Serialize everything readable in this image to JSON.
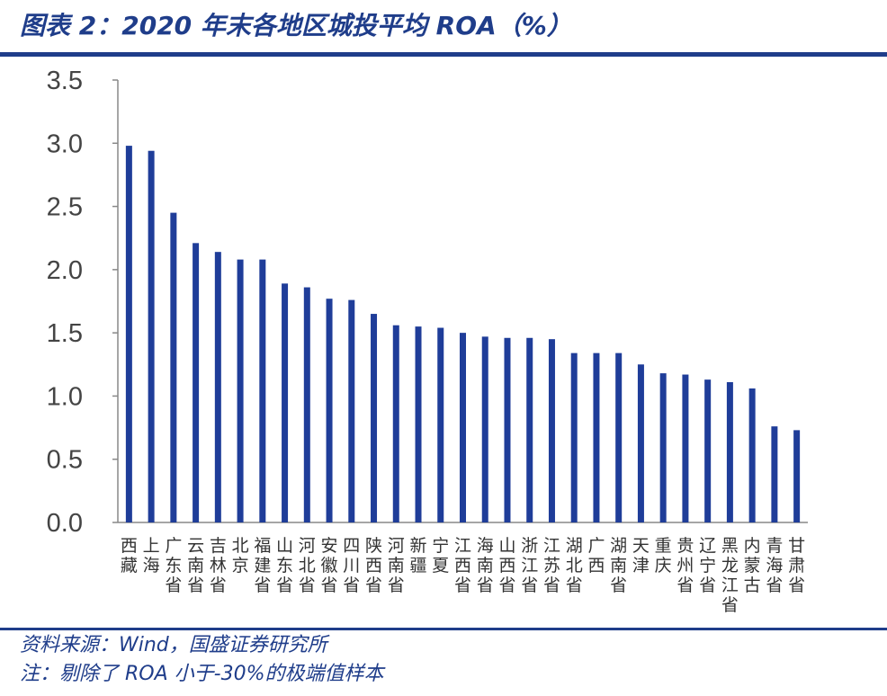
{
  "header": {
    "title": "图表 2：2020 年末各地区城投平均 ROA（%）"
  },
  "footer": {
    "source": "资料来源：Wind，国盛证券研究所",
    "note": "注：剔除了 ROA 小于-30%的极端值样本"
  },
  "colors": {
    "bar": "#1f3d99",
    "accent": "#1f3d8a"
  },
  "chart_data": {
    "type": "bar",
    "title": "2020 年末各地区城投平均 ROA（%）",
    "categories": [
      "西藏",
      "上海",
      "广东省",
      "云南省",
      "吉林省",
      "北京",
      "福建省",
      "山东省",
      "河北省",
      "安徽省",
      "四川省",
      "陕西省",
      "河南省",
      "新疆",
      "宁夏",
      "江西省",
      "海南省",
      "山西省",
      "浙江省",
      "江苏省",
      "湖北省",
      "广西",
      "湖南省",
      "天津",
      "重庆",
      "贵州省",
      "辽宁省",
      "黑龙江省",
      "内蒙古",
      "青海省",
      "甘肃省"
    ],
    "values": [
      2.98,
      2.94,
      2.45,
      2.21,
      2.14,
      2.08,
      2.08,
      1.89,
      1.86,
      1.77,
      1.76,
      1.65,
      1.56,
      1.55,
      1.54,
      1.5,
      1.47,
      1.46,
      1.46,
      1.45,
      1.34,
      1.34,
      1.34,
      1.25,
      1.18,
      1.17,
      1.13,
      1.11,
      1.06,
      0.76,
      0.73
    ],
    "ylim": [
      0,
      3.5
    ],
    "yticks": [
      "0.0",
      "0.5",
      "1.0",
      "1.5",
      "2.0",
      "2.5",
      "3.0",
      "3.5"
    ],
    "xlabel": "",
    "ylabel": "",
    "grid": false,
    "legend": "none"
  }
}
